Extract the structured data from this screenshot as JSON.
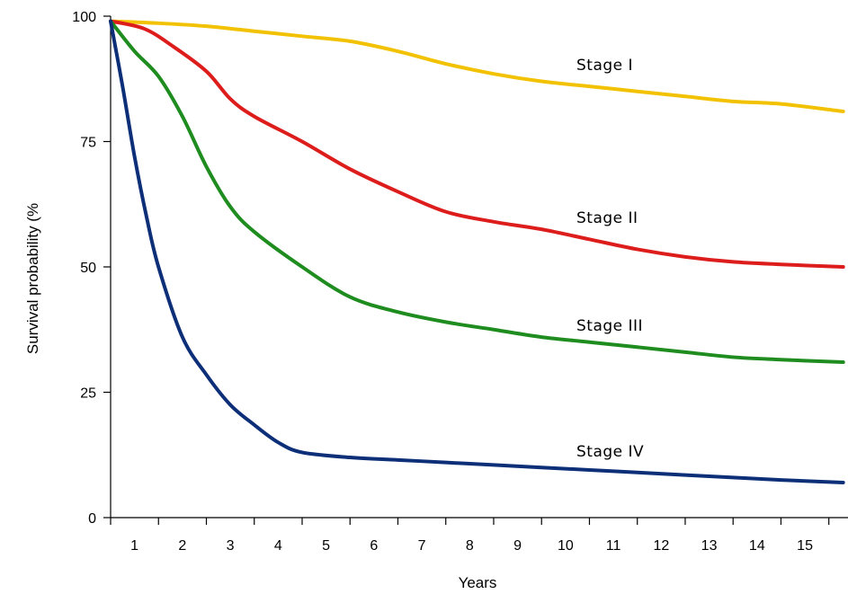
{
  "chart_data": {
    "type": "line",
    "title": "",
    "xlabel": "Years",
    "ylabel": "Survival probability (%",
    "xlim": [
      0,
      15.4
    ],
    "ylim": [
      0,
      100
    ],
    "x_ticks": [
      1,
      2,
      3,
      4,
      5,
      6,
      7,
      8,
      9,
      10,
      11,
      12,
      13,
      14,
      15
    ],
    "y_ticks": [
      0,
      25,
      50,
      75,
      100
    ],
    "grid": false,
    "legend": "none (inline labels)",
    "series": [
      {
        "name": "Stage I",
        "color": "#f2c200",
        "x": [
          0,
          1,
          2,
          3,
          4,
          5,
          6,
          7,
          8,
          9,
          10,
          11,
          12,
          13,
          14,
          15.3
        ],
        "values": [
          99,
          98.6,
          98,
          97,
          96,
          95,
          93,
          90.5,
          88.5,
          87,
          86,
          85,
          84,
          83,
          82.5,
          81
        ]
      },
      {
        "name": "Stage II",
        "color": "#dd1c1c",
        "x": [
          0,
          0.7,
          1.3,
          2,
          2.5,
          3,
          4,
          5,
          6,
          7,
          8,
          9,
          10,
          11,
          12,
          13,
          14,
          15.3
        ],
        "values": [
          99,
          97.5,
          94,
          89,
          83.5,
          80,
          75,
          69.5,
          65,
          61,
          59,
          57.5,
          55.5,
          53.5,
          52,
          51,
          50.5,
          50
        ]
      },
      {
        "name": "Stage III",
        "color": "#1e8c1e",
        "x": [
          0,
          0.5,
          1,
          1.5,
          2,
          2.5,
          3,
          4,
          5,
          6,
          7,
          8,
          9,
          10,
          11,
          12,
          13,
          14,
          15.3
        ],
        "values": [
          99,
          93,
          88,
          80,
          70,
          62,
          57,
          50,
          44,
          41,
          39,
          37.5,
          36,
          35,
          34,
          33,
          32,
          31.5,
          31
        ]
      },
      {
        "name": "Stage IV",
        "color": "#0d2f78",
        "x": [
          0,
          0.25,
          0.5,
          0.75,
          1,
          1.5,
          2,
          2.5,
          3,
          3.5,
          4,
          5,
          6,
          7,
          8,
          9,
          10,
          11,
          12,
          13,
          14,
          15.3
        ],
        "values": [
          99,
          86,
          72,
          60,
          50,
          36,
          28.5,
          22.5,
          18.5,
          15,
          13,
          12,
          11.5,
          11,
          10.5,
          10,
          9.5,
          9,
          8.5,
          8,
          7.5,
          7
        ]
      }
    ]
  }
}
